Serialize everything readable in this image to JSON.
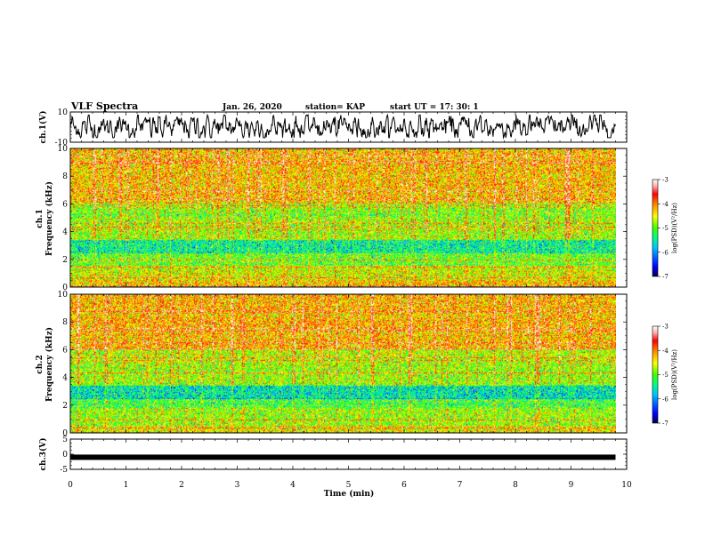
{
  "header": {
    "title": "VLF Spectra",
    "date": "Jan. 26, 2020",
    "station": "station= KAP",
    "start_ut": "start  UT  =   17: 30: 1"
  },
  "chart_data": [
    {
      "type": "line",
      "ylabel": "ch.1(V)",
      "ylim": [
        -10,
        10
      ],
      "yticks": [
        "10",
        "-10"
      ],
      "xlim": [
        0,
        10
      ],
      "x_extent": [
        0,
        9.8
      ],
      "description_of_series": "noisy waveform between about -6 and 7 V"
    },
    {
      "type": "heatmap",
      "ylabel_line1": "ch.1",
      "ylabel_line2": "Frequency (kHz)",
      "ylim": [
        0,
        10
      ],
      "yticks": [
        "0",
        "2",
        "4",
        "6",
        "8",
        "10"
      ],
      "xlim": [
        0,
        10
      ],
      "x_extent": [
        0,
        9.8
      ],
      "colorbar": {
        "label": "log(PSD)(V²/Hz)",
        "range": [
          -7,
          -3
        ],
        "ticks": [
          "-3",
          "-4",
          "-5",
          "-6",
          "-7"
        ],
        "colors": [
          "#000060",
          "#0000ff",
          "#00c8ff",
          "#00ff80",
          "#40ff00",
          "#ffff00",
          "#ff8000",
          "#ff0000",
          "#ffc8c8",
          "#ffffff"
        ]
      },
      "bands": [
        {
          "f": [
            0.0,
            0.5
          ],
          "level": -4.3
        },
        {
          "f": [
            0.5,
            1.5
          ],
          "level": -4.6
        },
        {
          "f": [
            1.5,
            2.4
          ],
          "level": -5.0
        },
        {
          "f": [
            2.4,
            3.4
          ],
          "level": -5.5
        },
        {
          "f": [
            3.4,
            5.0
          ],
          "level": -4.8
        },
        {
          "f": [
            5.0,
            6.0
          ],
          "level": -4.9
        },
        {
          "f": [
            6.0,
            10.0
          ],
          "level": -4.3
        }
      ]
    },
    {
      "type": "heatmap",
      "ylabel_line1": "ch.2",
      "ylabel_line2": "Frequency (kHz)",
      "ylim": [
        0,
        10
      ],
      "yticks": [
        "0",
        "2",
        "4",
        "6",
        "8",
        "10"
      ],
      "xlim": [
        0,
        10
      ],
      "x_extent": [
        0,
        9.8
      ],
      "colorbar": {
        "label": "log(PSD)(V²/Hz)",
        "range": [
          -7,
          -3
        ],
        "ticks": [
          "-3",
          "-4",
          "-5",
          "-6",
          "-7"
        ]
      },
      "bands": [
        {
          "f": [
            0.0,
            0.5
          ],
          "level": -4.5
        },
        {
          "f": [
            0.5,
            1.8
          ],
          "level": -4.8
        },
        {
          "f": [
            1.8,
            2.4
          ],
          "level": -5.1
        },
        {
          "f": [
            2.4,
            3.4
          ],
          "level": -5.6
        },
        {
          "f": [
            3.4,
            5.0
          ],
          "level": -4.8
        },
        {
          "f": [
            5.0,
            6.0
          ],
          "level": -4.7
        },
        {
          "f": [
            6.0,
            10.0
          ],
          "level": -4.2
        }
      ]
    },
    {
      "type": "line",
      "ylabel": "ch.3(V)",
      "ylim": [
        -5,
        5
      ],
      "yticks": [
        "5",
        "0",
        "-5"
      ],
      "xlim": [
        0,
        10
      ],
      "x_extent": [
        0,
        9.8
      ],
      "value": -1,
      "xlabel": "Time (min)",
      "xticks": [
        "0",
        "1",
        "2",
        "3",
        "4",
        "5",
        "6",
        "7",
        "8",
        "9",
        "10"
      ]
    }
  ]
}
